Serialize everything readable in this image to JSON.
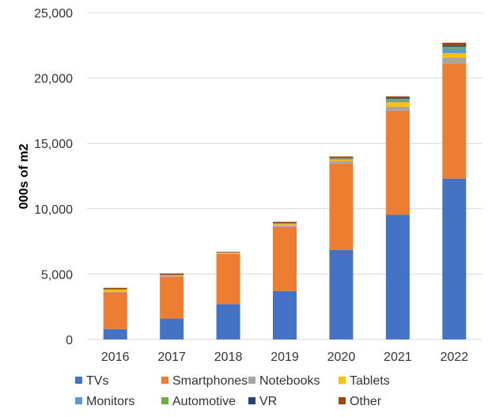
{
  "chart_data": {
    "type": "bar",
    "stacked": true,
    "ylabel": "000s of m2",
    "ylim": [
      0,
      25000
    ],
    "yticks": [
      0,
      5000,
      10000,
      15000,
      20000,
      25000
    ],
    "ytick_labels": [
      "0",
      "5,000",
      "10,000",
      "15,000",
      "20,000",
      "25,000"
    ],
    "grid": true,
    "legend_position": "bottom",
    "categories": [
      "2016",
      "2017",
      "2018",
      "2019",
      "2020",
      "2021",
      "2022"
    ],
    "series": [
      {
        "name": "TVs",
        "color": "#4472C4",
        "values": [
          800,
          1600,
          2700,
          3700,
          6850,
          9550,
          12300
        ]
      },
      {
        "name": "Smartphones",
        "color": "#ED7D31",
        "values": [
          2800,
          3200,
          3850,
          4900,
          6600,
          7950,
          8800
        ]
      },
      {
        "name": "Notebooks",
        "color": "#A5A5A5",
        "values": [
          50,
          50,
          30,
          100,
          200,
          300,
          450
        ]
      },
      {
        "name": "Tablets",
        "color": "#FFC000",
        "values": [
          150,
          50,
          40,
          120,
          100,
          350,
          350
        ]
      },
      {
        "name": "Monitors",
        "color": "#5B9BD5",
        "values": [
          20,
          20,
          10,
          30,
          60,
          150,
          350
        ]
      },
      {
        "name": "Automotive",
        "color": "#70AD47",
        "values": [
          10,
          10,
          10,
          20,
          40,
          100,
          150
        ]
      },
      {
        "name": "VR",
        "color": "#264478",
        "values": [
          0,
          0,
          0,
          10,
          30,
          50,
          100
        ]
      },
      {
        "name": "Other",
        "color": "#9E480E",
        "values": [
          120,
          120,
          60,
          120,
          120,
          150,
          200
        ]
      }
    ]
  }
}
